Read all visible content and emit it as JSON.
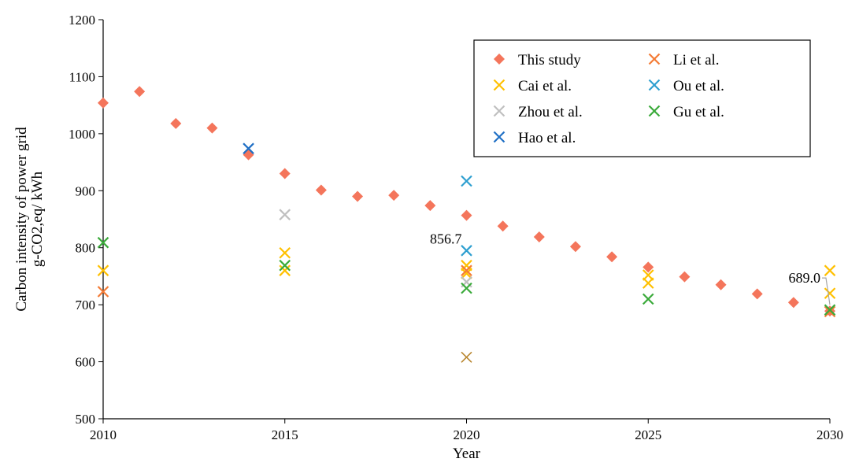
{
  "chart_data": {
    "type": "scatter",
    "xlabel": "Year",
    "ylabel_lines": [
      "Carbon intensity of power grid",
      "g-CO2,eq/ kWh"
    ],
    "xlim": [
      2010,
      2030
    ],
    "ylim": [
      500,
      1200
    ],
    "xticks": [
      2010,
      2015,
      2020,
      2025,
      2030
    ],
    "yticks": [
      500,
      600,
      700,
      800,
      900,
      1000,
      1100,
      1200
    ],
    "grid": false,
    "legend_position": "top-right",
    "series": [
      {
        "name": "This study",
        "marker": "diamond",
        "color": "#F4755B",
        "points": [
          {
            "x": 2010,
            "y": 1054
          },
          {
            "x": 2011,
            "y": 1074
          },
          {
            "x": 2012,
            "y": 1018
          },
          {
            "x": 2013,
            "y": 1010
          },
          {
            "x": 2014,
            "y": 963
          },
          {
            "x": 2015,
            "y": 930
          },
          {
            "x": 2016,
            "y": 901
          },
          {
            "x": 2017,
            "y": 890
          },
          {
            "x": 2018,
            "y": 892
          },
          {
            "x": 2019,
            "y": 874
          },
          {
            "x": 2020,
            "y": 856.7
          },
          {
            "x": 2021,
            "y": 838
          },
          {
            "x": 2022,
            "y": 819
          },
          {
            "x": 2023,
            "y": 802
          },
          {
            "x": 2024,
            "y": 784
          },
          {
            "x": 2025,
            "y": 766
          },
          {
            "x": 2026,
            "y": 749
          },
          {
            "x": 2027,
            "y": 735
          },
          {
            "x": 2028,
            "y": 719
          },
          {
            "x": 2029,
            "y": 704
          },
          {
            "x": 2030,
            "y": 689.0
          }
        ]
      },
      {
        "name": "Cai et al.",
        "marker": "x",
        "color": "#FFC000",
        "points": [
          {
            "x": 2010,
            "y": 760
          },
          {
            "x": 2015,
            "y": 791
          },
          {
            "x": 2015,
            "y": 760
          },
          {
            "x": 2020,
            "y": 769
          },
          {
            "x": 2020,
            "y": 755
          },
          {
            "x": 2025,
            "y": 752
          },
          {
            "x": 2025,
            "y": 738
          },
          {
            "x": 2030,
            "y": 760
          },
          {
            "x": 2030,
            "y": 720
          }
        ]
      },
      {
        "name": "Zhou et al.",
        "marker": "x",
        "color": "#BFBFBF",
        "points": [
          {
            "x": 2015,
            "y": 858
          },
          {
            "x": 2020,
            "y": 740
          }
        ]
      },
      {
        "name": "Hao et al.",
        "marker": "x",
        "color": "#1F6FC5",
        "points": [
          {
            "x": 2014,
            "y": 974
          }
        ]
      },
      {
        "name": "Li et al.",
        "marker": "x",
        "color": "#F47B35",
        "points": [
          {
            "x": 2010,
            "y": 723
          },
          {
            "x": 2020,
            "y": 760
          },
          {
            "x": 2030,
            "y": 688
          }
        ]
      },
      {
        "name": "Ou et al.",
        "marker": "x",
        "color": "#2E9FD0",
        "points": [
          {
            "x": 2020,
            "y": 917
          },
          {
            "x": 2020,
            "y": 795
          }
        ]
      },
      {
        "name": "Gu et al.",
        "marker": "x",
        "color": "#3AAA3A",
        "points": [
          {
            "x": 2010,
            "y": 809
          },
          {
            "x": 2015,
            "y": 769
          },
          {
            "x": 2020,
            "y": 729
          },
          {
            "x": 2025,
            "y": 710
          },
          {
            "x": 2030,
            "y": 691
          }
        ]
      }
    ],
    "unlabeled_points": [
      {
        "x": 2020,
        "y": 608,
        "marker": "x",
        "color": "#B8862E"
      }
    ],
    "annotations": [
      {
        "text": "856.7",
        "x": 2020,
        "y": 856.7
      },
      {
        "text": "689.0",
        "x": 2030,
        "y": 689.0
      }
    ]
  }
}
